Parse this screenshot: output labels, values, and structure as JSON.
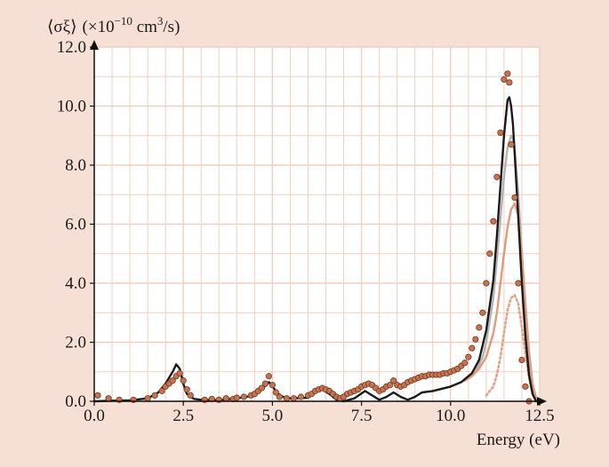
{
  "chart_data": {
    "type": "line",
    "ylabel_parts": {
      "quantity": "⟨σξ⟩",
      "factor_prefix": "(×10",
      "factor_exp": "−10",
      "unit_main": " cm",
      "unit_exp": "3",
      "unit_tail": "/s)"
    },
    "xlabel": "Energy (eV)",
    "xlim": [
      0,
      12.5
    ],
    "ylim": [
      0,
      12
    ],
    "xticks": [
      0,
      2.5,
      5,
      7.5,
      10,
      12.5
    ],
    "xtick_labels": [
      "0.0",
      "2.5",
      "5.0",
      "7.5",
      "10.0",
      "12.5"
    ],
    "yticks": [
      0,
      2,
      4,
      6,
      8,
      10,
      12
    ],
    "ytick_labels": [
      "0.0",
      "2.0",
      "4.0",
      "6.0",
      "8.0",
      "10.0",
      "12.0"
    ],
    "grid": true,
    "colors": {
      "background": "#f6e0d6",
      "plot_area": "#ffffff",
      "grid": "#f0cfc0",
      "black_series": "#1a1a1a",
      "gray_series": "#b3b3b3",
      "orange_series": "#e09a7c",
      "dotted_series": "#e3a287",
      "marker_fill": "#c8734f",
      "marker_edge": "#6b3a26"
    },
    "series": [
      {
        "style": "black-solid",
        "x": [
          0.0,
          0.5,
          1.0,
          1.5,
          1.8,
          2.0,
          2.2,
          2.3,
          2.4,
          2.5,
          2.6,
          2.8,
          3.0,
          3.5,
          4.0,
          4.5,
          4.7,
          4.9,
          5.0,
          5.1,
          5.3,
          5.5,
          6.0,
          6.2,
          6.4,
          6.6,
          6.8,
          7.0,
          7.3,
          7.6,
          7.8,
          8.0,
          8.2,
          8.4,
          8.6,
          8.8,
          9.0,
          9.2,
          9.5,
          10.0,
          10.3,
          10.6,
          10.8,
          11.0,
          11.2,
          11.3,
          11.4,
          11.5,
          11.6,
          11.65,
          11.7,
          11.75,
          11.8,
          11.9,
          12.0,
          12.1,
          12.2,
          12.3,
          12.4
        ],
        "y": [
          0.0,
          0.02,
          0.03,
          0.1,
          0.3,
          0.6,
          1.0,
          1.25,
          1.1,
          0.6,
          0.25,
          0.08,
          0.05,
          0.04,
          0.1,
          0.2,
          0.4,
          0.65,
          0.55,
          0.3,
          0.15,
          0.1,
          0.12,
          0.3,
          0.4,
          0.25,
          0.05,
          0.0,
          0.1,
          0.35,
          0.2,
          0.05,
          0.15,
          0.3,
          0.15,
          0.05,
          0.15,
          0.3,
          0.35,
          0.5,
          0.65,
          0.95,
          1.4,
          2.4,
          4.1,
          5.6,
          7.3,
          9.0,
          10.2,
          10.3,
          10.0,
          9.4,
          8.4,
          6.2,
          4.0,
          2.2,
          0.9,
          0.25,
          0.0
        ]
      },
      {
        "style": "gray-solid",
        "x": [
          10.5,
          10.7,
          10.9,
          11.0,
          11.2,
          11.3,
          11.4,
          11.5,
          11.6,
          11.7,
          11.75,
          11.8,
          11.9,
          12.0,
          12.1,
          12.2,
          12.3,
          12.4
        ],
        "y": [
          0.8,
          1.0,
          1.5,
          2.0,
          3.5,
          4.8,
          6.2,
          7.6,
          8.6,
          9.0,
          8.9,
          8.5,
          7.0,
          5.0,
          3.0,
          1.3,
          0.4,
          0.0
        ]
      },
      {
        "style": "orange-solid",
        "x": [
          10.4,
          10.6,
          10.8,
          11.0,
          11.2,
          11.3,
          11.4,
          11.5,
          11.6,
          11.7,
          11.8,
          11.9,
          12.0,
          12.1,
          12.2,
          12.3,
          12.4
        ],
        "y": [
          0.7,
          0.85,
          1.1,
          1.5,
          2.3,
          3.0,
          4.0,
          5.0,
          5.9,
          6.5,
          6.7,
          6.3,
          5.0,
          3.3,
          1.7,
          0.6,
          0.1
        ]
      },
      {
        "style": "orange-dotted",
        "x": [
          11.0,
          11.2,
          11.3,
          11.4,
          11.5,
          11.6,
          11.7,
          11.8,
          11.9,
          12.0,
          12.1,
          12.2,
          12.3,
          12.4
        ],
        "y": [
          0.2,
          0.5,
          0.9,
          1.5,
          2.3,
          3.1,
          3.5,
          3.6,
          3.3,
          2.5,
          1.6,
          0.8,
          0.25,
          0.0
        ]
      },
      {
        "style": "markers",
        "x": [
          0.1,
          0.4,
          0.7,
          1.1,
          1.5,
          1.7,
          1.9,
          2.0,
          2.1,
          2.2,
          2.3,
          2.4,
          2.5,
          2.6,
          2.7,
          3.1,
          3.3,
          3.5,
          3.7,
          3.9,
          4.0,
          4.2,
          4.4,
          4.5,
          4.6,
          4.7,
          4.8,
          4.9,
          5.0,
          5.1,
          5.2,
          5.4,
          5.6,
          5.8,
          6.0,
          6.1,
          6.2,
          6.3,
          6.4,
          6.5,
          6.6,
          6.7,
          6.8,
          6.9,
          7.0,
          7.1,
          7.2,
          7.3,
          7.4,
          7.5,
          7.6,
          7.7,
          7.8,
          7.9,
          8.0,
          8.1,
          8.2,
          8.3,
          8.4,
          8.5,
          8.6,
          8.7,
          8.8,
          8.9,
          9.0,
          9.1,
          9.2,
          9.3,
          9.4,
          9.5,
          9.6,
          9.7,
          9.8,
          9.9,
          10.0,
          10.1,
          10.2,
          10.3,
          10.4,
          10.5,
          10.6,
          10.7,
          10.8,
          10.9,
          11.0,
          11.1,
          11.2,
          11.3,
          11.4,
          11.5,
          11.6,
          11.65,
          11.7,
          11.8,
          11.9,
          12.0,
          12.1,
          12.2
        ],
        "y": [
          0.2,
          0.1,
          0.05,
          0.05,
          0.1,
          0.2,
          0.35,
          0.5,
          0.6,
          0.7,
          0.85,
          0.95,
          0.7,
          0.4,
          0.2,
          0.05,
          0.08,
          0.05,
          0.1,
          0.08,
          0.12,
          0.15,
          0.2,
          0.25,
          0.35,
          0.45,
          0.6,
          0.85,
          0.55,
          0.3,
          0.15,
          0.1,
          0.1,
          0.15,
          0.2,
          0.25,
          0.35,
          0.4,
          0.45,
          0.4,
          0.35,
          0.25,
          0.15,
          0.1,
          0.15,
          0.25,
          0.3,
          0.35,
          0.4,
          0.5,
          0.55,
          0.6,
          0.55,
          0.45,
          0.35,
          0.4,
          0.5,
          0.55,
          0.7,
          0.55,
          0.5,
          0.55,
          0.65,
          0.7,
          0.75,
          0.8,
          0.85,
          0.85,
          0.9,
          0.9,
          0.9,
          0.9,
          0.95,
          0.95,
          1.0,
          1.05,
          1.1,
          1.2,
          1.3,
          1.5,
          1.8,
          2.1,
          2.5,
          3.0,
          4.0,
          5.0,
          6.1,
          7.6,
          9.1,
          10.9,
          11.1,
          10.8,
          8.7,
          6.9,
          4.0,
          1.4,
          0.5,
          0.0
        ]
      }
    ]
  }
}
